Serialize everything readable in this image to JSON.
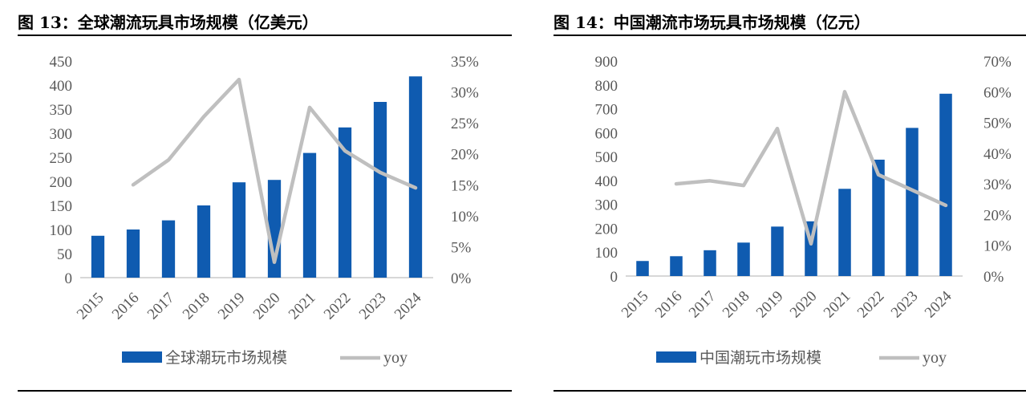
{
  "colors": {
    "bar": "#0F5BB0",
    "line": "#BFBFBF",
    "axis": "#BFBFBF",
    "text": "#595959"
  },
  "chart_data": [
    {
      "type": "bar",
      "title": "图 13：全球潮流玩具市场规模（亿美元）",
      "categories": [
        "2015",
        "2016",
        "2017",
        "2018",
        "2019",
        "2020",
        "2021",
        "2022",
        "2023",
        "2024"
      ],
      "series": [
        {
          "name": "全球潮玩市场规模",
          "type": "bar",
          "axis": "left",
          "values": [
            87,
            100,
            119,
            150,
            198,
            203,
            259,
            312,
            365,
            418
          ]
        },
        {
          "name": "yoy",
          "type": "line",
          "axis": "right",
          "values": [
            null,
            0.15,
            0.19,
            0.26,
            0.32,
            0.025,
            0.275,
            0.205,
            0.17,
            0.145
          ]
        }
      ],
      "ylim": [
        0,
        450
      ],
      "yticks": [
        "0",
        "50",
        "100",
        "150",
        "200",
        "250",
        "300",
        "350",
        "400",
        "450"
      ],
      "y2lim": [
        0,
        0.35
      ],
      "y2ticks": [
        "0%",
        "5%",
        "10%",
        "15%",
        "20%",
        "25%",
        "30%",
        "35%"
      ],
      "legend_position": "bottom",
      "grid": false
    },
    {
      "type": "bar",
      "title": "图 14：中国潮流市场玩具市场规模（亿元）",
      "categories": [
        "2015",
        "2016",
        "2017",
        "2018",
        "2019",
        "2020",
        "2021",
        "2022",
        "2023",
        "2024"
      ],
      "series": [
        {
          "name": "中国潮玩市场规模",
          "type": "bar",
          "axis": "left",
          "values": [
            63,
            83,
            108,
            140,
            207,
            229,
            365,
            487,
            620,
            763
          ]
        },
        {
          "name": "yoy",
          "type": "line",
          "axis": "right",
          "values": [
            null,
            0.3,
            0.31,
            0.295,
            0.48,
            0.105,
            0.6,
            0.33,
            0.28,
            0.23
          ]
        }
      ],
      "ylim": [
        0,
        900
      ],
      "yticks": [
        "0",
        "100",
        "200",
        "300",
        "400",
        "500",
        "600",
        "700",
        "800",
        "900"
      ],
      "y2lim": [
        0,
        0.7
      ],
      "y2ticks": [
        "0%",
        "10%",
        "20%",
        "30%",
        "40%",
        "50%",
        "60%",
        "70%"
      ],
      "legend_position": "bottom",
      "grid": false
    }
  ]
}
